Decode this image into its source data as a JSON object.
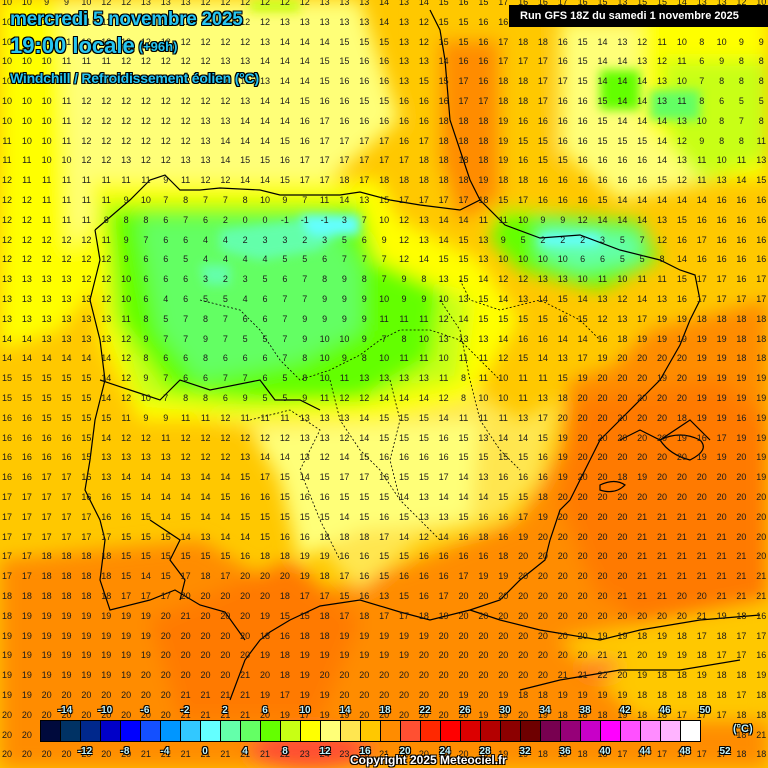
{
  "header": {
    "date": "mercredi 5 novembre 2025",
    "time": "19:00 locale",
    "lead": "(+96h)",
    "parameter": "Windchill / Refroidissement éolien (°C)",
    "run": "Run GFS 18Z du samedi 1 novembre 2025"
  },
  "footer": {
    "copyright": "Copyright 2025 Meteociel.fr",
    "unit": "(°C)"
  },
  "colorbar": {
    "colors": [
      "#000a3c",
      "#003264",
      "#00288c",
      "#0000c8",
      "#0000ff",
      "#1450ff",
      "#0096ff",
      "#32c8ff",
      "#64ffff",
      "#64ffaa",
      "#64ff64",
      "#64ff00",
      "#c8ff14",
      "#ffff00",
      "#ffff78",
      "#ffe650",
      "#ffc800",
      "#ff8c00",
      "#ff5032",
      "#ff2800",
      "#ff0000",
      "#dc0000",
      "#b40000",
      "#8c0000",
      "#6e0000",
      "#780050",
      "#960078",
      "#c800c8",
      "#ff00ff",
      "#ff50ff",
      "#ff8cff",
      "#ffb4ff",
      "#ffffff"
    ],
    "top_labels": [
      "-14",
      "-10",
      "-6",
      "-2",
      "2",
      "6",
      "10",
      "14",
      "18",
      "22",
      "26",
      "30",
      "34",
      "38",
      "42",
      "46",
      "50"
    ],
    "bottom_labels": [
      "-12",
      "-8",
      "-4",
      "0",
      "4",
      "8",
      "12",
      "16",
      "20",
      "24",
      "28",
      "32",
      "36",
      "40",
      "44",
      "48",
      "52"
    ]
  },
  "grid": {
    "rows": [
      "10 10 9 9 10 12 12 13 13 13 12 12 12 12 12 12 13 13 13 14 13 14 15 16 15 17 16 16 17 16 15 13 15 15 14 13 13 12 10",
      "10 10 10 10 11 11 12 12 12 12 12 12 12 12 13 13 13 13 13 14 13 12 15 15 16 16 17 17 17 17 16 15 14 13 12 12 11 10 10",
      "10 10 11 11 12 12 12 12 12 12 12 12 12 13 14 14 14 15 15 15 13 12 15 15 16 17 18 18 16 15 14 13 12 11 10 8 10 9 9",
      "10 10 10 11 11 11 12 12 12 12 12 13 13 14 14 14 15 15 16 16 13 13 14 16 16 17 17 17 16 15 14 14 13 12 11 6 9 8 8",
      "10 10 10 11 11 11 12 12 12 12 12 12 13 13 14 14 15 16 16 16 13 15 15 17 16 18 18 17 17 15 14 14 14 13 10 7 8 8 8",
      "10 10 10 11 12 12 12 12 12 12 12 12 13 14 14 15 16 16 15 15 16 16 16 17 17 18 18 17 16 16 15 14 14 13 11 8 6 5 5",
      "10 10 10 11 12 12 12 12 12 12 13 13 14 14 14 16 17 16 16 16 16 16 18 18 18 19 16 16 16 16 15 14 14 14 13 10 8 7 8",
      "11 10 10 11 12 12 12 12 12 12 13 14 14 14 15 16 17 17 17 17 16 17 18 18 18 19 15 15 16 16 15 15 15 14 12 9 8 8 11",
      "11 11 10 10 12 12 13 12 12 13 13 14 15 15 16 17 17 17 17 17 17 18 18 18 18 19 16 15 15 16 16 16 16 14 13 11 10 11 13",
      "12 11 11 11 11 11 11 11 9 11 12 12 14 14 15 17 17 18 17 18 18 18 18 18 19 18 18 16 16 16 16 16 16 15 12 11 13 14 15",
      "12 12 11 11 11 11 9 10 7 8 7 7 8 10 9 7 11 14 13 15 17 17 17 17 18 15 17 16 16 16 15 14 14 14 14 14 16 16 16",
      "12 12 11 11 11 8 8 8 6 7 6 2 0 0 -1 -1 -1 3 7 10 12 13 14 14 11 11 10 9 9 12 14 14 14 13 15 16 16 16 16",
      "12 12 12 12 12 11 9 7 6 6 4 4 2 3 3 2 3 5 6 9 12 13 14 15 13 9 5 2 2 2 3 5 7 12 16 17 16 16 16",
      "12 12 12 12 12 12 9 6 6 5 4 4 4 4 5 5 6 7 7 7 12 14 15 15 13 10 10 10 10 6 6 5 5 8 14 16 16 16 16",
      "13 13 13 13 12 12 10 6 6 6 3 2 3 5 6 7 8 9 8 7 9 8 13 15 14 12 12 13 13 10 11 10 11 11 15 17 17 16 17",
      "13 13 13 13 13 12 10 6 4 6 5 5 4 6 7 7 9 9 9 10 9 9 10 13 15 14 13 14 15 14 13 12 14 13 16 17 17 17 17",
      "13 13 13 13 13 13 11 8 5 7 8 7 6 6 7 9 9 9 9 11 11 11 12 14 15 15 15 15 16 15 12 13 17 19 19 18 18 18 18",
      "14 14 13 13 13 13 12 9 7 7 9 7 5 5 7 9 10 10 9 7 8 10 13 13 13 14 16 16 14 14 16 18 19 19 19 19 19 18 18",
      "14 14 14 14 14 14 12 8 6 6 8 6 6 6 7 8 10 9 8 10 11 11 10 11 11 12 15 14 13 17 19 20 20 20 20 19 19 18 18",
      "15 15 15 15 15 14 12 9 7 6 6 7 7 6 5 8 10 11 13 13 13 13 11 8 11 10 11 11 15 19 20 20 20 19 20 19 19 19 19",
      "15 15 15 15 15 14 12 10 7 8 8 6 9 5 5 9 11 12 12 14 14 14 12 8 10 10 11 13 18 20 20 20 20 20 20 19 19 19 19",
      "16 16 15 15 15 15 11 9 9 11 11 12 11 11 11 13 13 13 14 15 15 15 14 11 11 11 13 17 20 20 20 20 20 20 18 19 19 16 19",
      "16 16 16 16 15 14 12 12 11 12 12 12 12 12 12 13 13 12 14 15 15 15 16 15 13 14 14 15 19 20 20 20 20 20 19 16 17 19 19",
      "16 16 16 16 15 13 13 13 13 12 12 12 13 14 14 13 12 14 15 16 16 16 16 15 15 15 15 16 19 20 20 20 20 20 20 19 19 20 19",
      "16 16 17 17 16 13 14 14 14 13 14 14 15 17 15 14 15 17 17 16 15 15 17 14 13 16 16 16 19 20 20 18 19 20 20 20 20 20 19",
      "17 17 17 17 16 16 15 14 14 14 14 15 16 16 15 16 16 15 15 15 14 13 14 14 14 15 15 18 20 20 20 20 20 20 20 20 20 20 20",
      "17 17 17 17 17 16 16 15 14 15 14 14 15 15 15 15 15 14 15 16 15 13 13 15 16 16 17 19 20 20 20 20 21 21 21 21 20 20 20",
      "17 17 17 17 17 17 15 15 15 14 13 14 14 15 16 16 18 18 18 17 14 12 14 16 18 16 19 20 20 20 20 20 21 21 21 21 21 20 20",
      "17 17 18 18 18 18 15 15 15 15 15 15 16 18 18 19 19 16 16 15 15 16 16 16 16 18 20 20 20 20 20 20 21 21 21 21 21 21 20",
      "17 17 18 18 18 18 15 14 15 17 18 17 20 20 20 19 18 17 16 15 16 16 16 17 19 19 20 20 20 20 20 20 21 21 21 21 21 21 21",
      "18 18 18 18 18 18 17 17 17 20 20 20 20 20 18 17 17 15 16 13 15 16 17 20 20 20 20 20 20 20 20 21 21 21 20 20 21 21 21",
      "18 19 19 19 19 19 19 19 20 21 20 20 20 19 15 15 18 17 18 17 17 18 19 20 20 20 20 20 20 20 20 20 20 20 20 21 19 18 16",
      "19 19 19 19 19 19 19 19 20 20 20 20 20 18 16 18 18 19 19 19 19 19 20 20 20 20 20 20 20 20 19 19 18 19 18 17 18 17 17",
      "19 19 19 19 19 19 19 19 20 20 20 20 20 19 18 19 19 19 19 19 19 20 20 20 20 20 20 20 20 20 21 21 20 19 19 18 17 17 16",
      "19 19 19 19 19 19 19 20 20 20 20 20 21 20 18 19 20 20 20 20 20 20 20 20 20 20 20 20 21 21 22 20 19 18 18 19 18 18 19",
      "19 19 20 20 20 20 20 20 20 21 21 21 21 19 17 19 19 20 20 20 20 20 20 19 20 19 18 18 19 19 19 19 18 18 18 18 18 17 18",
      "20 20 20 20 20 20 20 20 20 21 21 21 21 20 19 17 19 19 20 20 20 20 20 20 19 19 20 19 18 18 18 19 18 18 17 17 17 18 18",
      "20 20 20 20 20 20 20 20 20 21 21 21 21 21 22 23 24 23 21 21 20 20 20 20 19 19 18 19 19 18 19 18 18 17 17 17 17 18 21",
      "20 20 20 20 20 20 20 21 21 21 21 21 21 21 22 23 24 23 23 21 20 20 20 20 19 19 19 18 18 18 18 17 17 17 17 17 17 18 18"
    ]
  }
}
